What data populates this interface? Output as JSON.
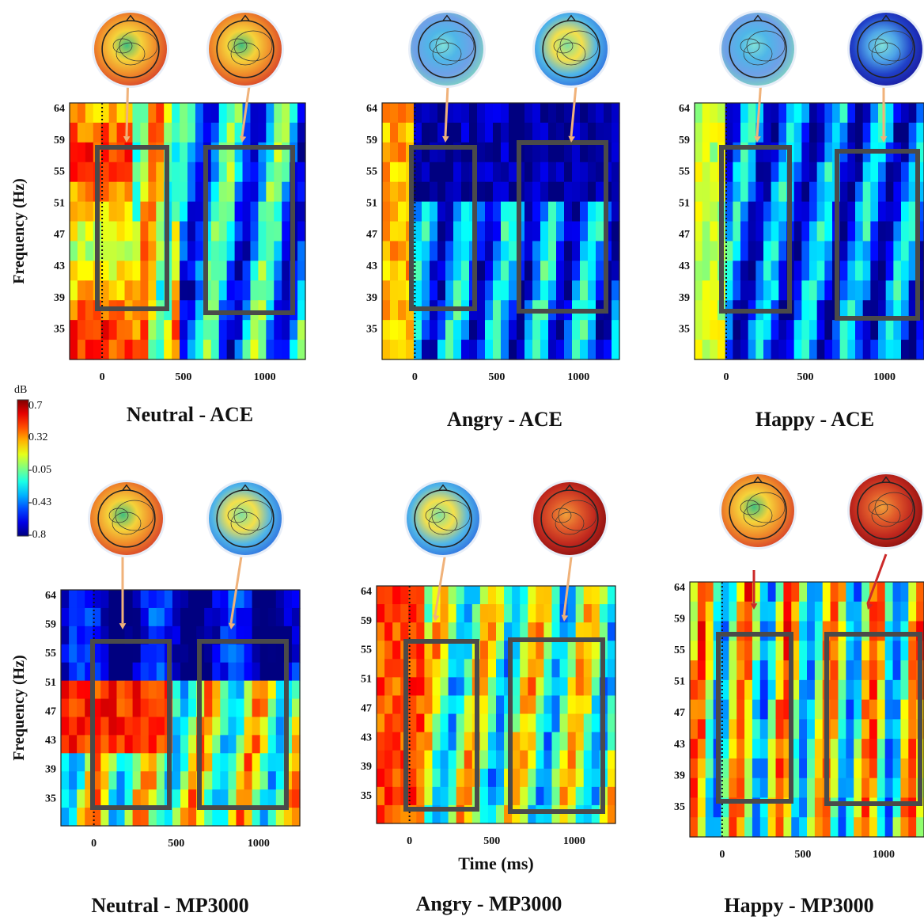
{
  "figure": {
    "colorbar": {
      "unit_label": "dB",
      "ticks": [
        "0.7",
        "0.32",
        "-0.05",
        "-0.43",
        "-0.8"
      ],
      "min": -0.8,
      "max": 0.7,
      "colormap": "jet"
    },
    "panels": [
      {
        "title": "Neutral - ACE",
        "ylabel": "Frequency (Hz)",
        "xlabel": "",
        "xticks": [
          "0",
          "500",
          "1000"
        ],
        "yticks": [
          "64",
          "59",
          "55",
          "51",
          "47",
          "43",
          "39",
          "35"
        ],
        "arrow_color": "#f0b27a",
        "heads": [
          "warm",
          "warm"
        ],
        "tone": "neutral_ace"
      },
      {
        "title": "Angry - ACE",
        "ylabel": "",
        "xlabel": "",
        "xticks": [
          "0",
          "500",
          "1000"
        ],
        "yticks": [
          "64",
          "59",
          "55",
          "51",
          "47",
          "43",
          "39",
          "35"
        ],
        "arrow_color": "#f0b27a",
        "heads": [
          "cool",
          "mixed"
        ],
        "tone": "angry_ace"
      },
      {
        "title": "Happy - ACE",
        "ylabel": "",
        "xlabel": "",
        "xticks": [
          "0",
          "500",
          "1000"
        ],
        "yticks": [
          "64",
          "59",
          "55",
          "51",
          "47",
          "43",
          "39",
          "35"
        ],
        "arrow_color": "#f0b27a",
        "heads": [
          "cool",
          "cold"
        ],
        "tone": "happy_ace"
      },
      {
        "title": "Neutral - MP3000",
        "ylabel": "Frequency (Hz)",
        "xlabel": "",
        "xticks": [
          "0",
          "500",
          "1000"
        ],
        "yticks": [
          "64",
          "59",
          "55",
          "51",
          "47",
          "43",
          "39",
          "35"
        ],
        "arrow_color": "#f0b27a",
        "heads": [
          "warm",
          "mixed"
        ],
        "tone": "neutral_mp"
      },
      {
        "title": "Angry - MP3000",
        "ylabel": "",
        "xlabel": "Time (ms)",
        "xticks": [
          "0",
          "500",
          "1000"
        ],
        "yticks": [
          "64",
          "59",
          "55",
          "51",
          "47",
          "43",
          "39",
          "35"
        ],
        "arrow_color": "#f0b27a",
        "heads": [
          "mixed",
          "hot"
        ],
        "tone": "angry_mp"
      },
      {
        "title": "Happy - MP3000",
        "ylabel": "",
        "xlabel": "",
        "xticks": [
          "0",
          "500",
          "1000"
        ],
        "yticks": [
          "64",
          "59",
          "55",
          "51",
          "47",
          "43",
          "39",
          "35"
        ],
        "arrow_color": "#cc2a2a",
        "heads": [
          "warm",
          "hot"
        ],
        "tone": "happy_mp"
      }
    ]
  },
  "chart_data": {
    "type": "heatmap",
    "x_unit": "ms",
    "y_unit": "Hz",
    "xlim": [
      -200,
      1250
    ],
    "ylim": [
      30,
      65
    ],
    "colorbar": {
      "label": "dB",
      "min": -0.8,
      "max": 0.7,
      "ticks": [
        0.7,
        0.32,
        -0.05,
        -0.43,
        -0.8
      ]
    },
    "panels": [
      {
        "title": "Neutral - ACE",
        "boxes_ms_hz": [
          [
            0,
            400,
            37,
            56
          ],
          [
            650,
            1200,
            37,
            56
          ]
        ],
        "approx_mean_db": {
          "early_window": 0.25,
          "late_window": -0.45
        }
      },
      {
        "title": "Angry - ACE",
        "boxes_ms_hz": [
          [
            0,
            380,
            37,
            56
          ],
          [
            650,
            1200,
            37,
            56
          ]
        ],
        "approx_mean_db": {
          "early_window": -0.5,
          "late_window": -0.65
        }
      },
      {
        "title": "Happy - ACE",
        "boxes_ms_hz": [
          [
            0,
            400,
            37,
            56
          ],
          [
            680,
            1250,
            37,
            56
          ]
        ],
        "approx_mean_db": {
          "early_window": -0.55,
          "late_window": -0.55
        }
      },
      {
        "title": "Neutral - MP3000",
        "boxes_ms_hz": [
          [
            0,
            480,
            35,
            55
          ],
          [
            650,
            1200,
            35,
            55
          ]
        ],
        "approx_mean_db": {
          "early_window": 0.3,
          "late_window": -0.1
        }
      },
      {
        "title": "Angry - MP3000",
        "boxes_ms_hz": [
          [
            0,
            450,
            34,
            55
          ],
          [
            650,
            1200,
            34,
            55
          ]
        ],
        "approx_mean_db": {
          "early_window": 0.0,
          "late_window": -0.15
        }
      },
      {
        "title": "Happy - MP3000",
        "boxes_ms_hz": [
          [
            0,
            450,
            35,
            55
          ],
          [
            650,
            1250,
            35,
            55
          ]
        ],
        "approx_mean_db": {
          "early_window": 0.15,
          "late_window": -0.3
        }
      }
    ]
  }
}
